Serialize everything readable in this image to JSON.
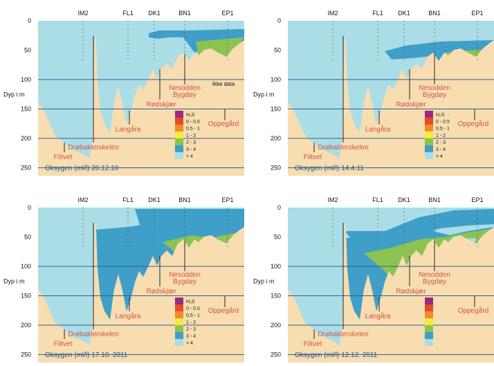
{
  "colors": {
    "sediment": "#f7ddb0",
    "gt4": "#abdde6",
    "c3_4": "#3f9fc8",
    "c2_3": "#8cc351",
    "c1_2": "#f4ec3e",
    "c05_1": "#f48a29",
    "c0_05": "#e54b2a",
    "h2s": "#9a2a80",
    "label_red": "#d1544a",
    "label_blue": "#1f4f8f",
    "grid": "#2f5f92"
  },
  "depth_axis": {
    "label": "Dyp i m",
    "ticks": [
      "0",
      "50",
      "100",
      "150",
      "200",
      "250"
    ]
  },
  "stations": [
    "IM2",
    "FL1",
    "DK1",
    "BN1",
    "EP1"
  ],
  "places": [
    "Filtvet",
    "Drøbakterskelen",
    "Langåra",
    "Rødskjær",
    "Nesodden",
    "Bygdøy",
    "Oppegård"
  ],
  "legend_items": [
    "H₂S",
    "0 - 0.5",
    "0.5 - 1",
    "1 - 2",
    "2 - 3",
    "3 - 4",
    "> 4"
  ],
  "no_data_label": "Ikke data",
  "panels": [
    {
      "title": "Oksygen (ml/l) 20.12.10",
      "show_legend_labels": true,
      "show_no_data": true
    },
    {
      "title": "Oksygen (ml/l) 14.4.11",
      "show_legend_labels": true,
      "show_no_data": false
    },
    {
      "title": "Oksygen (ml/l) 17.10. 2011",
      "show_legend_labels": true,
      "show_no_data": false
    },
    {
      "title": "Oksygen (ml/l) 12.12. 2011",
      "show_legend_labels": false,
      "show_no_data": false
    }
  ]
}
